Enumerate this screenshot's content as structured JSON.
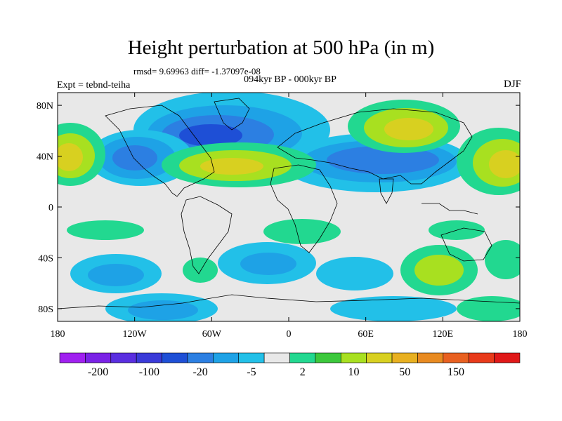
{
  "title": "Height perturbation at 500 hPa (in m)",
  "stats": "rmsd= 9.69963 diff= -1.37097e-08",
  "period": "094kyr BP - 000kyr BP",
  "experiment": "Expt = tebnd-teiha",
  "season": "DJF",
  "chart_data": {
    "type": "heatmap",
    "title": "Height perturbation at 500 hPa (in m)",
    "units": "m",
    "lat_labels": [
      "80N",
      "40N",
      "0",
      "40S",
      "80S"
    ],
    "lat_values": [
      80,
      40,
      0,
      -40,
      -80
    ],
    "lon_labels": [
      "180",
      "120W",
      "60W",
      "0",
      "60E",
      "120E",
      "180"
    ],
    "lon_values": [
      -180,
      -120,
      -60,
      0,
      60,
      120,
      180
    ],
    "lat_range": [
      -90,
      90
    ],
    "lon_range": [
      -180,
      180
    ],
    "colorbar": {
      "labels": [
        "-200",
        "-100",
        "-20",
        "-5",
        "2",
        "10",
        "50",
        "150"
      ],
      "colors": [
        "#a020f0",
        "#7a22e6",
        "#5a2ee0",
        "#3a3ad8",
        "#1e4fd6",
        "#2c7fe2",
        "#1ea2e6",
        "#22c0e8",
        "#e8e8e8",
        "#22d890",
        "#3cc83c",
        "#a8e020",
        "#d8d020",
        "#e8b020",
        "#e88a20",
        "#e86020",
        "#e83a1a",
        "#e01818"
      ]
    }
  }
}
